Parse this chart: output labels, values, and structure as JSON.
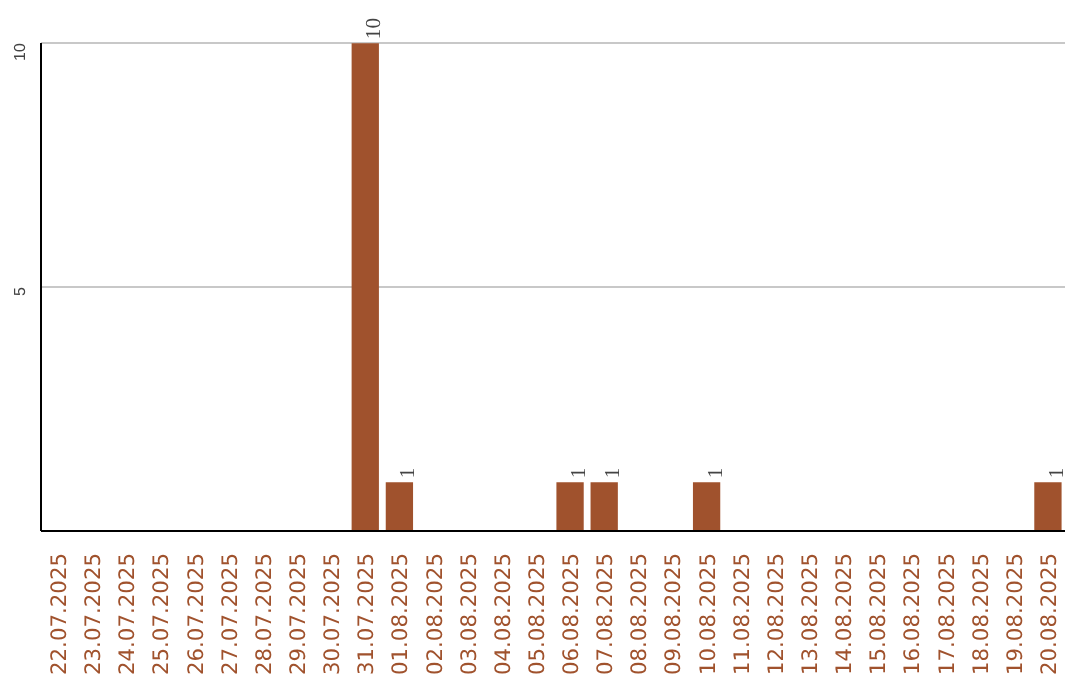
{
  "chart_data": {
    "type": "bar",
    "categories": [
      "22.07.2025",
      "23.07.2025",
      "24.07.2025",
      "25.07.2025",
      "26.07.2025",
      "27.07.2025",
      "28.07.2025",
      "29.07.2025",
      "30.07.2025",
      "31.07.2025",
      "01.08.2025",
      "02.08.2025",
      "03.08.2025",
      "04.08.2025",
      "05.08.2025",
      "06.08.2025",
      "07.08.2025",
      "08.08.2025",
      "09.08.2025",
      "10.08.2025",
      "11.08.2025",
      "12.08.2025",
      "13.08.2025",
      "14.08.2025",
      "15.08.2025",
      "16.08.2025",
      "17.08.2025",
      "18.08.2025",
      "19.08.2025",
      "20.08.2025"
    ],
    "values": [
      0,
      0,
      0,
      0,
      0,
      0,
      0,
      0,
      0,
      10,
      1,
      0,
      0,
      0,
      0,
      1,
      1,
      0,
      0,
      1,
      0,
      0,
      0,
      0,
      0,
      0,
      0,
      0,
      0,
      1
    ],
    "value_labels": [
      null,
      null,
      null,
      null,
      null,
      null,
      null,
      null,
      null,
      "10",
      "1",
      null,
      null,
      null,
      null,
      "1",
      "1",
      null,
      null,
      "1",
      null,
      null,
      null,
      null,
      null,
      null,
      null,
      null,
      null,
      "1"
    ],
    "color": "#a0522d",
    "ylim": [
      0,
      10
    ],
    "yticks": [
      5,
      10
    ],
    "grid": "y"
  }
}
